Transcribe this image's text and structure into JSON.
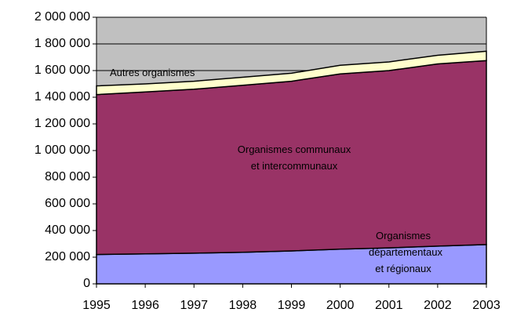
{
  "chart_data": {
    "type": "stacked_area",
    "x": [
      1995,
      1996,
      1997,
      1998,
      1999,
      2000,
      2001,
      2002,
      2003
    ],
    "xlim": [
      1995,
      2003
    ],
    "xticks": [
      1995,
      1996,
      1997,
      1998,
      1999,
      2000,
      2001,
      2002,
      2003
    ],
    "ylim": [
      0,
      2000000
    ],
    "yticks": [
      0,
      {
        "value": 200000,
        "label": "200 000"
      },
      {
        "value": 400000,
        "label": "400 000"
      },
      {
        "value": 600000,
        "label": "600 000"
      },
      {
        "value": 800000,
        "label": "800 000"
      },
      {
        "value": 1000000,
        "label": "1 000 000"
      },
      {
        "value": 1200000,
        "label": "1 200 000"
      },
      {
        "value": 1400000,
        "label": "1 400 000"
      },
      {
        "value": 1600000,
        "label": "1 600 000"
      },
      {
        "value": 1800000,
        "label": "1 800 000"
      },
      {
        "value": 2000000,
        "label": "2 000 000"
      }
    ],
    "grid": true,
    "background": "#c0c0c0",
    "series": [
      {
        "name": "Organismes départementaux et régionaux",
        "color": "#9999ff",
        "values": [
          220000,
          225000,
          230000,
          237000,
          247000,
          260000,
          270000,
          283000,
          295000
        ]
      },
      {
        "name": "Organismes communaux et intercommunaux",
        "color": "#993366",
        "values": [
          1200000,
          1215000,
          1230000,
          1253000,
          1273000,
          1315000,
          1330000,
          1367000,
          1380000
        ]
      },
      {
        "name": "Autres organismes",
        "color": "#ffffcc",
        "values": [
          65000,
          60000,
          60000,
          60000,
          60000,
          65000,
          65000,
          65000,
          70000
        ]
      }
    ]
  }
}
